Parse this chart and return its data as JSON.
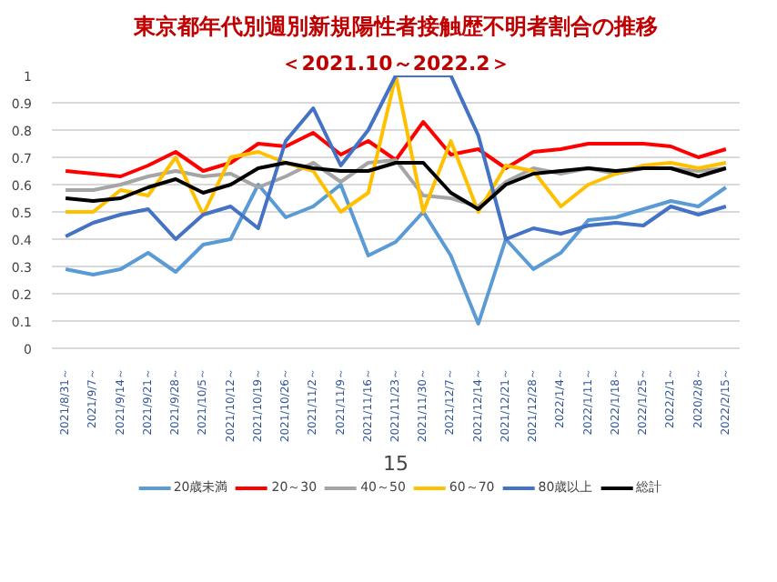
{
  "chart_data": {
    "type": "line",
    "title": "東京都年代別週別新規陽性者接触歴不明者割合の推移",
    "subtitle": "＜2021.10～2022.2＞",
    "categories": [
      "2021/8/31～",
      "2021/9/7～",
      "2021/9/14～",
      "2021/9/21～",
      "2021/9/28～",
      "2021/10/5～",
      "2021/10/12～",
      "2021/10/19～",
      "2021/10/26～",
      "2021/11/2～",
      "2021/11/9～",
      "2021/11/16～",
      "2021/11/23～",
      "2021/11/30～",
      "2021/12/7～",
      "2021/12/14～",
      "2021/12/21～",
      "2021/12/28～",
      "2022/1/4～",
      "2022/1/11～",
      "2022/1/18～",
      "2022/1/25～",
      "2022/2/1～",
      "2020/2/8～",
      "2022/2/15～"
    ],
    "series": [
      {
        "name": "20歳未満",
        "color": "#5b9bd5",
        "values": [
          0.29,
          0.27,
          0.29,
          0.35,
          0.28,
          0.38,
          0.4,
          0.6,
          0.48,
          0.52,
          0.6,
          0.34,
          0.39,
          0.5,
          0.34,
          0.09,
          0.4,
          0.29,
          0.35,
          0.47,
          0.48,
          0.51,
          0.54,
          0.52,
          0.59
        ]
      },
      {
        "name": "20～30",
        "color": "#ff0000",
        "values": [
          0.65,
          0.64,
          0.63,
          0.67,
          0.72,
          0.65,
          0.68,
          0.75,
          0.74,
          0.79,
          0.71,
          0.76,
          0.69,
          0.83,
          0.71,
          0.73,
          0.66,
          0.72,
          0.73,
          0.75,
          0.75,
          0.75,
          0.74,
          0.7,
          0.73
        ]
      },
      {
        "name": "40～50",
        "color": "#a5a5a5",
        "values": [
          0.58,
          0.58,
          0.6,
          0.63,
          0.65,
          0.63,
          0.64,
          0.59,
          0.63,
          0.68,
          0.61,
          0.68,
          0.69,
          0.56,
          0.55,
          0.52,
          0.61,
          0.66,
          0.64,
          0.66,
          0.64,
          0.66,
          0.66,
          0.65,
          0.66
        ]
      },
      {
        "name": "60～70",
        "color": "#ffc000",
        "values": [
          0.5,
          0.5,
          0.58,
          0.56,
          0.7,
          0.49,
          0.7,
          0.72,
          0.68,
          0.65,
          0.5,
          0.57,
          1.0,
          0.5,
          0.76,
          0.5,
          0.67,
          0.65,
          0.52,
          0.6,
          0.64,
          0.67,
          0.68,
          0.66,
          0.68
        ]
      },
      {
        "name": "80歳以上",
        "color": "#4472c4",
        "values": [
          0.41,
          0.46,
          0.49,
          0.51,
          0.4,
          0.49,
          0.52,
          0.44,
          0.76,
          0.88,
          0.67,
          0.8,
          1.0,
          1.0,
          1.0,
          0.78,
          0.4,
          0.44,
          0.42,
          0.45,
          0.46,
          0.45,
          0.52,
          0.49,
          0.52
        ]
      },
      {
        "name": "総計",
        "color": "#000000",
        "values": [
          0.55,
          0.54,
          0.55,
          0.59,
          0.62,
          0.57,
          0.6,
          0.66,
          0.68,
          0.66,
          0.65,
          0.65,
          0.68,
          0.68,
          0.57,
          0.51,
          0.6,
          0.64,
          0.65,
          0.66,
          0.65,
          0.66,
          0.66,
          0.63,
          0.66
        ]
      }
    ],
    "ylim": [
      0,
      1
    ],
    "yticks": [
      0,
      0.1,
      0.2,
      0.3,
      0.4,
      0.5,
      0.6,
      0.7,
      0.8,
      0.9,
      1
    ],
    "grid": "y",
    "legend": "bottom",
    "line_style": "solid",
    "marker": "none",
    "annotations": [
      "15"
    ]
  }
}
